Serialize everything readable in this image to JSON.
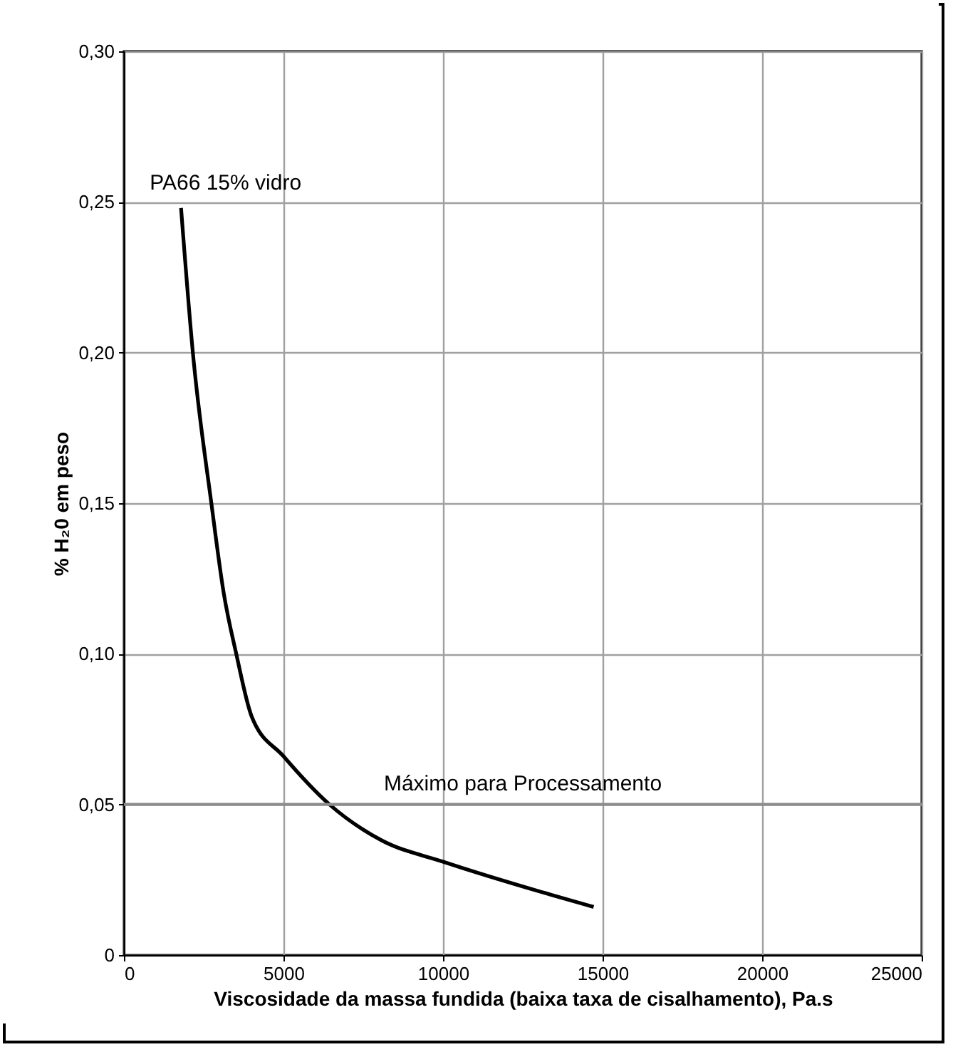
{
  "chart_data": {
    "type": "line",
    "xlabel": "Viscosidade da massa fundida (baixa taxa de cisalhamento), Pa.s",
    "ylabel": "% H₂0 em peso",
    "xlim": [
      0,
      25000
    ],
    "xticks": [
      0,
      5000,
      10000,
      15000,
      20000,
      25000
    ],
    "ylim": [
      0,
      0.3
    ],
    "yticks": [
      0,
      {
        "value": 0.05,
        "label": "0,05"
      },
      {
        "value": 0.1,
        "label": "0,10"
      },
      {
        "value": 0.15,
        "label": "0,15"
      },
      {
        "value": 0.2,
        "label": "0,20"
      },
      {
        "value": 0.25,
        "label": "0,25"
      },
      {
        "value": 0.3,
        "label": "0,30"
      }
    ],
    "grid": true,
    "series": [
      {
        "name": "PA66 15% vidro",
        "color": "#000000",
        "x": [
          1790,
          2160,
          2740,
          3130,
          3520,
          4010,
          5000,
          6440,
          8090,
          10000,
          13390,
          14720
        ],
        "values": [
          0.248,
          0.2,
          0.15,
          0.12,
          0.1,
          0.079,
          0.066,
          0.05,
          0.038,
          0.031,
          0.02,
          0.016
        ]
      }
    ],
    "ref_lines": [
      {
        "axis": "y",
        "value": 0.05,
        "label": "Máximo para Processamento",
        "color": "#8c8c8c"
      }
    ]
  }
}
